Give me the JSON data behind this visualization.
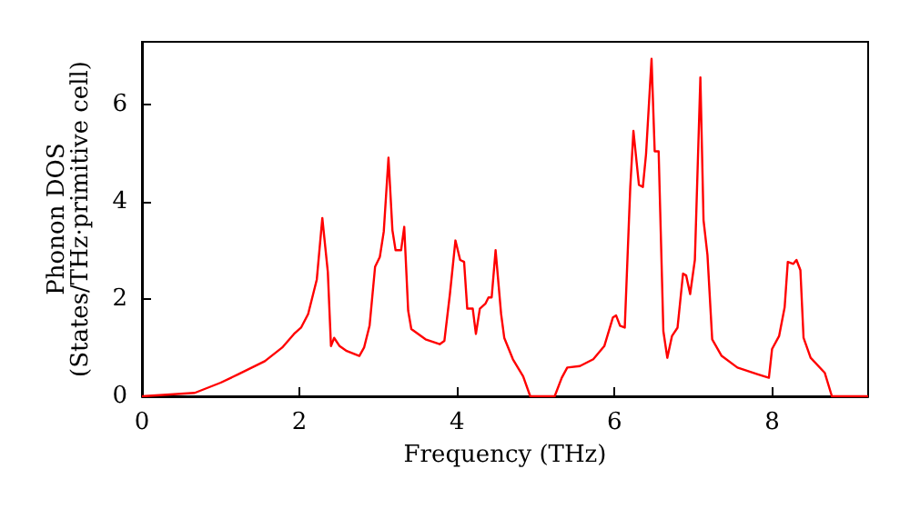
{
  "chart_data": {
    "type": "line",
    "xlabel": "Frequency (THz)",
    "ylabel": "Phonon DOS\n(States/THz·primitive cell)",
    "x": [
      0,
      0.67,
      1.0,
      1.22,
      1.56,
      1.78,
      1.93,
      2.02,
      2.11,
      2.22,
      2.29,
      2.36,
      2.4,
      2.44,
      2.51,
      2.6,
      2.76,
      2.82,
      2.89,
      2.96,
      3.02,
      3.07,
      3.13,
      3.18,
      3.22,
      3.29,
      3.33,
      3.38,
      3.42,
      3.6,
      3.78,
      3.84,
      3.91,
      3.98,
      4.04,
      4.09,
      4.13,
      4.2,
      4.24,
      4.29,
      4.36,
      4.4,
      4.44,
      4.49,
      4.56,
      4.6,
      4.71,
      4.84,
      4.93,
      5.24,
      5.33,
      5.4,
      5.56,
      5.73,
      5.87,
      5.98,
      6.02,
      6.07,
      6.13,
      6.2,
      6.24,
      6.31,
      6.36,
      6.4,
      6.47,
      6.51,
      6.56,
      6.62,
      6.67,
      6.73,
      6.8,
      6.87,
      6.91,
      6.96,
      7.02,
      7.09,
      7.13,
      7.18,
      7.24,
      7.36,
      7.56,
      7.82,
      7.96,
      8.0,
      8.09,
      8.16,
      8.2,
      8.27,
      8.31,
      8.36,
      8.4,
      8.49,
      8.67,
      8.76,
      9.22
    ],
    "series": [
      {
        "color": "#ff0000",
        "values": [
          0,
          0.07,
          0.28,
          0.45,
          0.72,
          1.0,
          1.28,
          1.41,
          1.69,
          2.4,
          3.66,
          2.55,
          1.03,
          1.2,
          1.03,
          0.93,
          0.83,
          1.0,
          1.45,
          2.66,
          2.86,
          3.38,
          4.9,
          3.41,
          3.0,
          3.0,
          3.48,
          1.76,
          1.38,
          1.17,
          1.07,
          1.14,
          2.1,
          3.2,
          2.8,
          2.76,
          1.8,
          1.8,
          1.28,
          1.8,
          1.9,
          2.03,
          2.03,
          3.0,
          1.69,
          1.2,
          0.76,
          0.41,
          0,
          0,
          0.38,
          0.59,
          0.62,
          0.76,
          1.03,
          1.62,
          1.66,
          1.45,
          1.41,
          4.3,
          5.45,
          4.34,
          4.3,
          4.97,
          6.93,
          5.03,
          5.03,
          1.34,
          0.79,
          1.24,
          1.41,
          2.52,
          2.48,
          2.1,
          2.8,
          6.55,
          3.62,
          2.9,
          1.17,
          0.83,
          0.59,
          0.45,
          0.38,
          0.97,
          1.24,
          1.83,
          2.76,
          2.72,
          2.8,
          2.59,
          1.2,
          0.79,
          0.48,
          0,
          0
        ]
      }
    ],
    "xlim": [
      0,
      9.22
    ],
    "ylim": [
      0,
      7.28
    ],
    "xticks": [
      0,
      2,
      4,
      6,
      8
    ],
    "yticks": [
      0,
      2,
      4,
      6
    ],
    "grid": false,
    "marker": "none",
    "line_style": "solid"
  }
}
